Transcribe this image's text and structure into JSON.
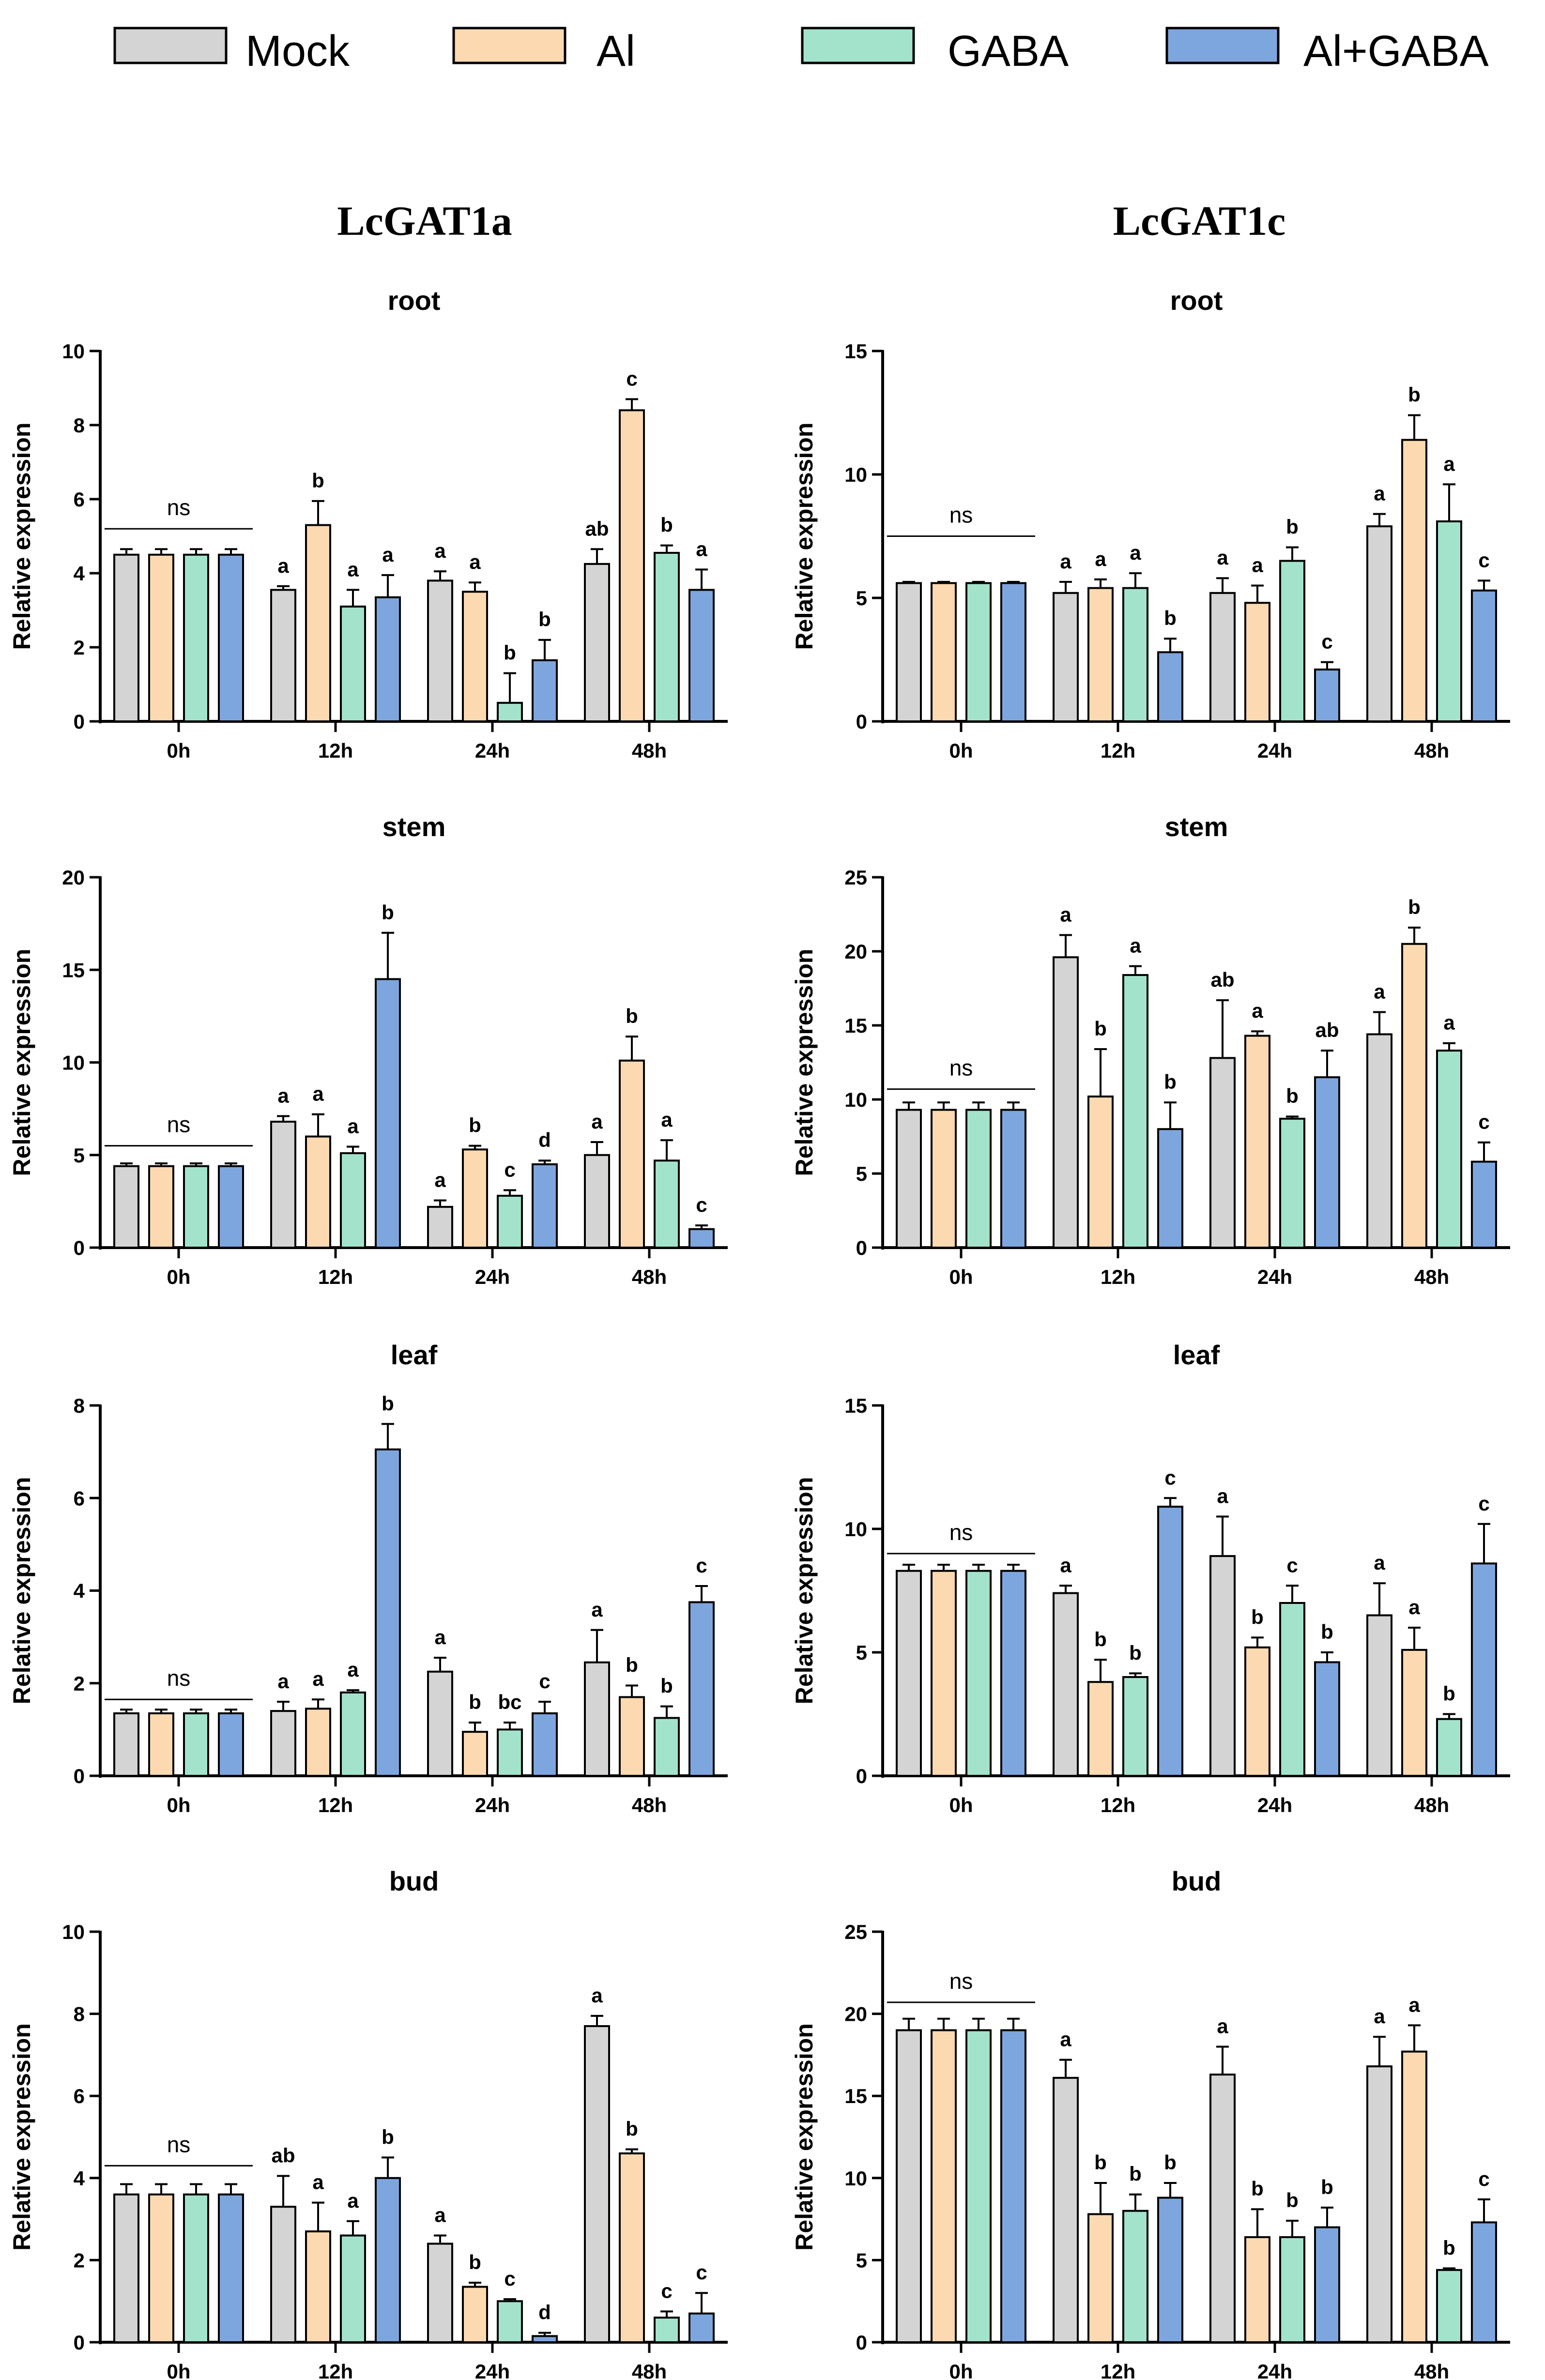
{
  "legend": [
    {
      "label": "Mock",
      "color": "#d4d4d4"
    },
    {
      "label": "Al",
      "color": "#fcd9b0"
    },
    {
      "label": "GABA",
      "color": "#a3e3cc"
    },
    {
      "label": "Al+GABA",
      "color": "#7ea6de"
    }
  ],
  "genes": [
    "LcGAT1a",
    "LcGAT1c"
  ],
  "chart_data": [
    {
      "type": "bar",
      "gene": "LcGAT1a",
      "title": "root",
      "ylabel": "Relative expression",
      "ylim": [
        0,
        10
      ],
      "yticks": [
        0,
        2,
        4,
        6,
        8,
        10
      ],
      "categories": [
        "0h",
        "12h",
        "24h",
        "48h"
      ],
      "series": [
        {
          "name": "Mock",
          "values": [
            4.5,
            3.55,
            3.8,
            4.25
          ],
          "errors": [
            0.15,
            0.1,
            0.25,
            0.4
          ],
          "letters": [
            "",
            "a",
            "a",
            "ab"
          ]
        },
        {
          "name": "Al",
          "values": [
            4.5,
            5.3,
            3.5,
            8.4
          ],
          "errors": [
            0.15,
            0.65,
            0.25,
            0.3
          ],
          "letters": [
            "",
            "b",
            "a",
            "c"
          ]
        },
        {
          "name": "GABA",
          "values": [
            4.5,
            3.1,
            0.5,
            4.55
          ],
          "errors": [
            0.15,
            0.45,
            0.8,
            0.2
          ],
          "letters": [
            "",
            "a",
            "b",
            "b"
          ]
        },
        {
          "name": "Al+GABA",
          "values": [
            4.5,
            3.35,
            1.65,
            3.55
          ],
          "errors": [
            0.15,
            0.6,
            0.55,
            0.55
          ],
          "letters": [
            "",
            "a",
            "b",
            "a"
          ]
        }
      ],
      "annotation": "ns",
      "annotation_value": 5.2
    },
    {
      "type": "bar",
      "gene": "LcGAT1c",
      "title": "root",
      "ylabel": "Relative expression",
      "ylim": [
        0,
        15
      ],
      "yticks": [
        0,
        5,
        10,
        15
      ],
      "categories": [
        "0h",
        "12h",
        "24h",
        "48h"
      ],
      "series": [
        {
          "name": "Mock",
          "values": [
            5.6,
            5.2,
            5.2,
            7.9
          ],
          "errors": [
            0.05,
            0.45,
            0.6,
            0.5
          ],
          "letters": [
            "",
            "a",
            "a",
            "a"
          ]
        },
        {
          "name": "Al",
          "values": [
            5.6,
            5.4,
            4.8,
            11.4
          ],
          "errors": [
            0.05,
            0.35,
            0.7,
            1.0
          ],
          "letters": [
            "",
            "a",
            "a",
            "b"
          ]
        },
        {
          "name": "GABA",
          "values": [
            5.6,
            5.4,
            6.5,
            8.1
          ],
          "errors": [
            0.05,
            0.6,
            0.55,
            1.5
          ],
          "letters": [
            "",
            "a",
            "b",
            "a"
          ]
        },
        {
          "name": "Al+GABA",
          "values": [
            5.6,
            2.8,
            2.1,
            5.3
          ],
          "errors": [
            0.05,
            0.55,
            0.3,
            0.4
          ],
          "letters": [
            "",
            "b",
            "c",
            "c"
          ]
        }
      ],
      "annotation": "ns",
      "annotation_value": 7.5
    },
    {
      "type": "bar",
      "gene": "LcGAT1a",
      "title": "stem",
      "ylabel": "Relative expression",
      "ylim": [
        0,
        20
      ],
      "yticks": [
        0,
        5,
        10,
        15,
        20
      ],
      "categories": [
        "0h",
        "12h",
        "24h",
        "48h"
      ],
      "series": [
        {
          "name": "Mock",
          "values": [
            4.4,
            6.8,
            2.2,
            5.0
          ],
          "errors": [
            0.15,
            0.3,
            0.35,
            0.7
          ],
          "letters": [
            "",
            "a",
            "a",
            "a"
          ]
        },
        {
          "name": "Al",
          "values": [
            4.4,
            6.0,
            5.3,
            10.1
          ],
          "errors": [
            0.15,
            1.2,
            0.2,
            1.3
          ],
          "letters": [
            "",
            "a",
            "b",
            "b"
          ]
        },
        {
          "name": "GABA",
          "values": [
            4.4,
            5.1,
            2.8,
            4.7
          ],
          "errors": [
            0.15,
            0.35,
            0.3,
            1.1
          ],
          "letters": [
            "",
            "a",
            "c",
            "a"
          ]
        },
        {
          "name": "Al+GABA",
          "values": [
            4.4,
            14.5,
            4.5,
            1.0
          ],
          "errors": [
            0.15,
            2.5,
            0.2,
            0.2
          ],
          "letters": [
            "",
            "b",
            "d",
            "c"
          ]
        }
      ],
      "annotation": "ns",
      "annotation_value": 5.5
    },
    {
      "type": "bar",
      "gene": "LcGAT1c",
      "title": "stem",
      "ylabel": "Relative expression",
      "ylim": [
        0,
        25
      ],
      "yticks": [
        0,
        5,
        10,
        15,
        20,
        25
      ],
      "categories": [
        "0h",
        "12h",
        "24h",
        "48h"
      ],
      "series": [
        {
          "name": "Mock",
          "values": [
            9.3,
            19.6,
            12.8,
            14.4
          ],
          "errors": [
            0.5,
            1.5,
            3.9,
            1.5
          ],
          "letters": [
            "",
            "a",
            "ab",
            "a"
          ]
        },
        {
          "name": "Al",
          "values": [
            9.3,
            10.2,
            14.3,
            20.5
          ],
          "errors": [
            0.5,
            3.2,
            0.3,
            1.1
          ],
          "letters": [
            "",
            "b",
            "a",
            "b"
          ]
        },
        {
          "name": "GABA",
          "values": [
            9.3,
            18.4,
            8.7,
            13.3
          ],
          "errors": [
            0.5,
            0.6,
            0.15,
            0.5
          ],
          "letters": [
            "",
            "a",
            "b",
            "a"
          ]
        },
        {
          "name": "Al+GABA",
          "values": [
            9.3,
            8.0,
            11.5,
            5.8
          ],
          "errors": [
            0.5,
            1.8,
            1.8,
            1.3
          ],
          "letters": [
            "",
            "b",
            "ab",
            "c"
          ]
        }
      ],
      "annotation": "ns",
      "annotation_value": 10.7
    },
    {
      "type": "bar",
      "gene": "LcGAT1a",
      "title": "leaf",
      "ylabel": "Relative expression",
      "ylim": [
        0,
        8
      ],
      "yticks": [
        0,
        2,
        4,
        6,
        8
      ],
      "categories": [
        "0h",
        "12h",
        "24h",
        "48h"
      ],
      "series": [
        {
          "name": "Mock",
          "values": [
            1.35,
            1.4,
            2.25,
            2.45
          ],
          "errors": [
            0.08,
            0.2,
            0.3,
            0.7
          ],
          "letters": [
            "",
            "a",
            "a",
            "a"
          ]
        },
        {
          "name": "Al",
          "values": [
            1.35,
            1.45,
            0.95,
            1.7
          ],
          "errors": [
            0.08,
            0.2,
            0.2,
            0.25
          ],
          "letters": [
            "",
            "a",
            "b",
            "b"
          ]
        },
        {
          "name": "GABA",
          "values": [
            1.35,
            1.8,
            1.0,
            1.25
          ],
          "errors": [
            0.08,
            0.05,
            0.15,
            0.25
          ],
          "letters": [
            "",
            "a",
            "bc",
            "b"
          ]
        },
        {
          "name": "Al+GABA",
          "values": [
            1.35,
            7.05,
            1.35,
            3.75
          ],
          "errors": [
            0.08,
            0.55,
            0.25,
            0.35
          ],
          "letters": [
            "",
            "b",
            "c",
            "c"
          ]
        }
      ],
      "annotation": "ns",
      "annotation_value": 1.65
    },
    {
      "type": "bar",
      "gene": "LcGAT1c",
      "title": "leaf",
      "ylabel": "Relative expression",
      "ylim": [
        0,
        15
      ],
      "yticks": [
        0,
        5,
        10,
        15
      ],
      "categories": [
        "0h",
        "12h",
        "24h",
        "48h"
      ],
      "series": [
        {
          "name": "Mock",
          "values": [
            8.3,
            7.4,
            8.9,
            6.5
          ],
          "errors": [
            0.25,
            0.3,
            1.6,
            1.3
          ],
          "letters": [
            "",
            "a",
            "a",
            "a"
          ]
        },
        {
          "name": "Al",
          "values": [
            8.3,
            3.8,
            5.2,
            5.1
          ],
          "errors": [
            0.25,
            0.9,
            0.4,
            0.9
          ],
          "letters": [
            "",
            "b",
            "b",
            "a"
          ]
        },
        {
          "name": "GABA",
          "values": [
            8.3,
            4.0,
            7.0,
            2.3
          ],
          "errors": [
            0.25,
            0.15,
            0.7,
            0.2
          ],
          "letters": [
            "",
            "b",
            "c",
            "b"
          ]
        },
        {
          "name": "Al+GABA",
          "values": [
            8.3,
            10.9,
            4.6,
            8.6
          ],
          "errors": [
            0.25,
            0.35,
            0.4,
            1.6
          ],
          "letters": [
            "",
            "c",
            "b",
            "c"
          ]
        }
      ],
      "annotation": "ns",
      "annotation_value": 9.0
    },
    {
      "type": "bar",
      "gene": "LcGAT1a",
      "title": "bud",
      "ylabel": "Relative expression",
      "ylim": [
        0,
        10
      ],
      "yticks": [
        0,
        2,
        4,
        6,
        8,
        10
      ],
      "categories": [
        "0h",
        "12h",
        "24h",
        "48h"
      ],
      "series": [
        {
          "name": "Mock",
          "values": [
            3.6,
            3.3,
            2.4,
            7.7
          ],
          "errors": [
            0.25,
            0.75,
            0.2,
            0.25
          ],
          "letters": [
            "",
            "ab",
            "a",
            "a"
          ]
        },
        {
          "name": "Al",
          "values": [
            3.6,
            2.7,
            1.35,
            4.6
          ],
          "errors": [
            0.25,
            0.7,
            0.1,
            0.1
          ],
          "letters": [
            "",
            "a",
            "b",
            "b"
          ]
        },
        {
          "name": "GABA",
          "values": [
            3.6,
            2.6,
            1.0,
            0.6
          ],
          "errors": [
            0.25,
            0.35,
            0.05,
            0.15
          ],
          "letters": [
            "",
            "a",
            "c",
            "c"
          ]
        },
        {
          "name": "Al+GABA",
          "values": [
            3.6,
            4.0,
            0.15,
            0.7
          ],
          "errors": [
            0.25,
            0.5,
            0.08,
            0.5
          ],
          "letters": [
            "",
            "b",
            "d",
            "c"
          ]
        }
      ],
      "annotation": "ns",
      "annotation_value": 4.3
    },
    {
      "type": "bar",
      "gene": "LcGAT1c",
      "title": "bud",
      "ylabel": "Relative expression",
      "ylim": [
        0,
        25
      ],
      "yticks": [
        0,
        5,
        10,
        15,
        20,
        25
      ],
      "categories": [
        "0h",
        "12h",
        "24h",
        "48h"
      ],
      "series": [
        {
          "name": "Mock",
          "values": [
            19.0,
            16.1,
            16.3,
            16.8
          ],
          "errors": [
            0.7,
            1.1,
            1.7,
            1.8
          ],
          "letters": [
            "",
            "a",
            "a",
            "a"
          ]
        },
        {
          "name": "Al",
          "values": [
            19.0,
            7.8,
            6.4,
            17.7
          ],
          "errors": [
            0.7,
            1.9,
            1.7,
            1.6
          ],
          "letters": [
            "",
            "b",
            "b",
            "a"
          ]
        },
        {
          "name": "GABA",
          "values": [
            19.0,
            8.0,
            6.4,
            4.4
          ],
          "errors": [
            0.7,
            1.0,
            1.0,
            0.1
          ],
          "letters": [
            "",
            "b",
            "b",
            "b"
          ]
        },
        {
          "name": "Al+GABA",
          "values": [
            19.0,
            8.8,
            7.0,
            7.3
          ],
          "errors": [
            0.7,
            0.9,
            1.2,
            1.4
          ],
          "letters": [
            "",
            "b",
            "b",
            "c"
          ]
        }
      ],
      "annotation": "ns",
      "annotation_value": 20.7
    }
  ]
}
